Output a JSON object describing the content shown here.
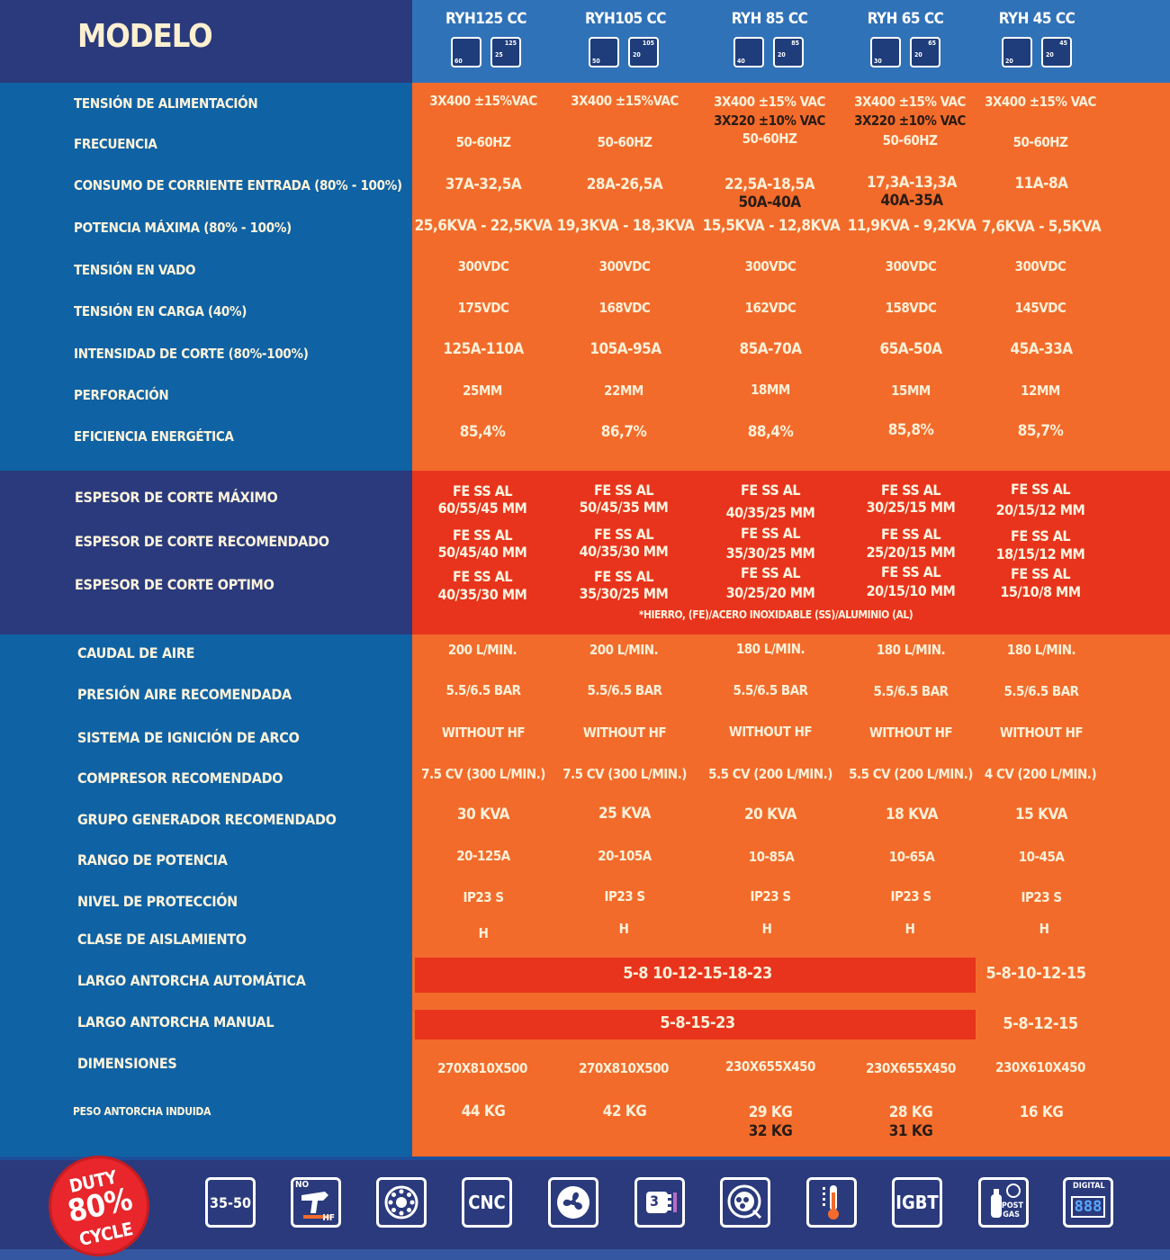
{
  "header": {
    "title": "MODELO",
    "models": [
      {
        "name": "RYH125 CC",
        "icon_a": "60",
        "icon_b1": "125",
        "icon_b2": "25"
      },
      {
        "name": "RYH105 CC",
        "icon_a": "50",
        "icon_b1": "105",
        "icon_b2": "20"
      },
      {
        "name": "RYH 85 CC",
        "icon_a": "40",
        "icon_b1": "85",
        "icon_b2": "20"
      },
      {
        "name": "RYH 65 CC",
        "icon_a": "30",
        "icon_b1": "65",
        "icon_b2": "20"
      },
      {
        "name": "RYH 45 CC",
        "icon_a": "20",
        "icon_b1": "45",
        "icon_b2": "20"
      }
    ]
  },
  "section1": {
    "labels": {
      "tension_alimentacion": "TENSIÓN DE ALIMENTACIÓN",
      "frecuencia": "FRECUENCIA",
      "consumo": "CONSUMO DE CORRIENTE ENTRADA (80% - 100%)",
      "potencia": "POTENCIA MÁXIMA (80% - 100%)",
      "tension_vacio": "TENSIÓN EN VADO",
      "tension_carga": "TENSIÓN EN CARGA (40%)",
      "intensidad": "INTENSIDAD DE CORTE (80%-100%)",
      "perforacion": "PERFORACIÓN",
      "eficiencia": "EFICIENCIA ENERGÉTICA"
    },
    "tension": [
      "3X400 ±15%VAC",
      "3X400 ±15%VAC",
      "3X400 ±15% VAC",
      "3X400 ±15% VAC",
      "3X400 ±15% VAC"
    ],
    "tension_220": [
      "",
      "",
      "3X220 ±10% VAC",
      "3X220 ±10% VAC",
      ""
    ],
    "frecuencia": [
      "50-60HZ",
      "50-60HZ",
      "50-60HZ",
      "50-60HZ",
      "50-60HZ"
    ],
    "consumo": [
      "37A-32,5A",
      "28A-26,5A",
      "22,5A-18,5A",
      "17,3A-13,3A",
      "11A-8A"
    ],
    "consumo_220": [
      "",
      "",
      "50A-40A",
      "40A-35A",
      ""
    ],
    "potencia": [
      "25,6KVA - 22,5KVA",
      "19,3KVA - 18,3KVA",
      "15,5KVA - 12,8KVA",
      "11,9KVA - 9,2KVA",
      "7,6KVA - 5,5KVA"
    ],
    "vacio": [
      "300VDC",
      "300VDC",
      "300VDC",
      "300VDC",
      "300VDC"
    ],
    "carga": [
      "175VDC",
      "168VDC",
      "162VDC",
      "158VDC",
      "145VDC"
    ],
    "intensidad": [
      "125A-110A",
      "105A-95A",
      "85A-70A",
      "65A-50A",
      "45A-33A"
    ],
    "perforacion": [
      "25MM",
      "22MM",
      "18MM",
      "15MM",
      "12MM"
    ],
    "eficiencia": [
      "85,4%",
      "86,7%",
      "88,4%",
      "85,8%",
      "85,7%"
    ]
  },
  "section2": {
    "labels": {
      "maximo": "ESPESOR DE CORTE MÁXIMO",
      "recomendado": "ESPESOR DE CORTE RECOMENDADO",
      "optimo": "ESPESOR DE CORTE OPTIMO"
    },
    "metal_header": "FE SS AL",
    "maximo": [
      "60/55/45 MM",
      "50/45/35 MM",
      "40/35/25 MM",
      "30/25/15 MM",
      "20/15/12 MM"
    ],
    "recomendado": [
      "50/45/40 MM",
      "40/35/30 MM",
      "35/30/25 MM",
      "25/20/15 MM",
      "18/15/12 MM"
    ],
    "optimo": [
      "40/35/30 MM",
      "35/30/25 MM",
      "30/25/20 MM",
      "20/15/10 MM",
      "15/10/8 MM"
    ],
    "footnote": "*HIERRO, (FE)/ACERO INOXIDABLE (SS)/ALUMINIO (AL)"
  },
  "section3": {
    "labels": {
      "caudal": "CAUDAL DE AIRE",
      "presion": "PRESIÓN AIRE RECOMENDADA",
      "ignicion": "SISTEMA DE IGNICIÓN DE ARCO",
      "compresor": "COMPRESOR RECOMENDADO",
      "generador": "GRUPO GENERADOR RECOMENDADO",
      "rango": "RANGO DE POTENCIA",
      "proteccion": "NIVEL DE PROTECCIÓN",
      "aislamiento": "CLASE DE AISLAMIENTO",
      "antorcha_auto": "LARGO ANTORCHA AUTOMÁTICA",
      "antorcha_manual": "LARGO ANTORCHA MANUAL",
      "dimensiones": "DIMENSIONES",
      "peso": "PESO ANTORCHA INDUIDA"
    },
    "caudal": [
      "200 L/MIN.",
      "200 L/MIN.",
      "180 L/MIN.",
      "180 L/MIN.",
      "180 L/MIN."
    ],
    "presion": [
      "5.5/6.5 BAR",
      "5.5/6.5 BAR",
      "5.5/6.5 BAR",
      "5.5/6.5 BAR",
      "5.5/6.5 BAR"
    ],
    "ignicion": [
      "WITHOUT HF",
      "WITHOUT HF",
      "WITHOUT HF",
      "WITHOUT HF",
      "WITHOUT HF"
    ],
    "compresor": [
      "7.5 CV (300 L/MIN.)",
      "7.5 CV (300 L/MIN.)",
      "5.5 CV (200 L/MIN.)",
      "5.5 CV (200 L/MIN.)",
      "4 CV (200 L/MIN.)"
    ],
    "generador": [
      "30 KVA",
      "25 KVA",
      "20 KVA",
      "18 KVA",
      "15 KVA"
    ],
    "rango": [
      "20-125A",
      "20-105A",
      "10-85A",
      "10-65A",
      "10-45A"
    ],
    "proteccion": [
      "IP23 S",
      "IP23 S",
      "IP23 S",
      "IP23 S",
      "IP23 S"
    ],
    "aislamiento": [
      "H",
      "H",
      "H",
      "H",
      "H"
    ],
    "antorcha_auto_wide": "5-8 10-12-15-18-23",
    "antorcha_auto_last": "5-8-10-12-15",
    "antorcha_manual_wide": "5-8-15-23",
    "antorcha_manual_last": "5-8-12-15",
    "dimensiones": [
      "270X810X500",
      "270X810X500",
      "230X655X450",
      "230X655X450",
      "230X610X450"
    ],
    "peso": [
      "44 KG",
      "42 KG",
      "29 KG",
      "28 KG",
      "16 KG"
    ],
    "peso_2": [
      "",
      "",
      "32 KG",
      "31 KG",
      ""
    ]
  },
  "footer": {
    "duty_line1": "DUTY",
    "duty_line2": "80%",
    "duty_line3": "CYCLE",
    "icons": [
      {
        "name": "pressure-range-icon",
        "text": "35-50"
      },
      {
        "name": "no-hf-torch-icon",
        "text_top": "NO",
        "text_bottom": "HF"
      },
      {
        "name": "connector-icon",
        "text": ""
      },
      {
        "name": "cnc-icon",
        "text": "CNC"
      },
      {
        "name": "fan-icon",
        "text": ""
      },
      {
        "name": "three-phase-plug-icon",
        "text": "3"
      },
      {
        "name": "generator-icon",
        "text": ""
      },
      {
        "name": "thermometer-icon",
        "text": ""
      },
      {
        "name": "igbt-icon",
        "text": "IGBT"
      },
      {
        "name": "post-gas-icon",
        "text_top": "POST",
        "text_bottom": "GAS"
      },
      {
        "name": "digital-display-icon",
        "text_top": "DIGITAL",
        "text_bottom": "888"
      }
    ]
  }
}
